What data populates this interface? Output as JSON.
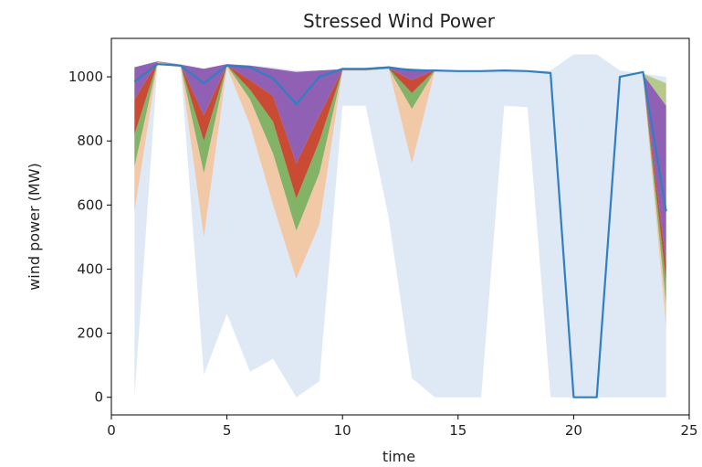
{
  "chart_data": {
    "type": "area",
    "title": "Stressed Wind Power",
    "xlabel": "time",
    "ylabel": "wind power (MW)",
    "xlim": [
      0,
      25
    ],
    "ylim": [
      -55,
      1120
    ],
    "xticks": [
      0,
      5,
      10,
      15,
      20,
      25
    ],
    "yticks": [
      0,
      200,
      400,
      600,
      800,
      1000
    ],
    "grid": false,
    "x": [
      1,
      2,
      3,
      4,
      5,
      6,
      7,
      8,
      9,
      10,
      11,
      12,
      13,
      14,
      15,
      16,
      17,
      18,
      19,
      20,
      21,
      22,
      23,
      24
    ],
    "range_band": {
      "color": "#dfe9f5",
      "lower": [
        0,
        1040,
        1030,
        70,
        260,
        80,
        120,
        0,
        50,
        910,
        910,
        560,
        60,
        0,
        0,
        0,
        910,
        905,
        0,
        0,
        0,
        0,
        0,
        0
      ],
      "upper": [
        1030,
        1050,
        1040,
        1025,
        1040,
        1035,
        1030,
        1020,
        1020,
        1025,
        1025,
        1030,
        1025,
        1020,
        1020,
        1020,
        1020,
        1020,
        1020,
        1070,
        1070,
        1020,
        1010,
        1000
      ]
    },
    "bands": [
      {
        "color": "#f2c9a6",
        "lower": [
          580,
          1040,
          1030,
          500,
          1030,
          850,
          600,
          370,
          540,
          1020,
          1020,
          1025,
          730,
          1020
        ],
        "upper": [
          720,
          1045,
          1035,
          700,
          1035,
          930,
          760,
          520,
          700,
          1020,
          1020,
          1025,
          900,
          1020
        ]
      },
      {
        "color": "#82b366",
        "lower": [
          720,
          1045,
          1035,
          700,
          1035,
          930,
          760,
          520,
          700,
          1020,
          1020,
          1025,
          900,
          1020
        ],
        "upper": [
          820,
          1046,
          1036,
          800,
          1036,
          960,
          860,
          620,
          800,
          1021,
          1021,
          1026,
          950,
          1021
        ]
      },
      {
        "color": "#c94b33",
        "lower": [
          820,
          1046,
          1036,
          800,
          1036,
          960,
          860,
          620,
          800,
          1021,
          1021,
          1026,
          950,
          1021
        ],
        "upper": [
          930,
          1047,
          1037,
          880,
          1037,
          990,
          940,
          730,
          880,
          1022,
          1022,
          1027,
          990,
          1022
        ]
      },
      {
        "color": "#9060b5",
        "lower": [
          930,
          1047,
          1037,
          880,
          1037,
          990,
          940,
          730,
          880,
          1022,
          1022,
          1027,
          990,
          1022
        ],
        "upper": [
          1030,
          1048,
          1038,
          1025,
          1040,
          1035,
          1025,
          1015,
          1020,
          1024,
          1025,
          1030,
          1025,
          1022
        ]
      }
    ],
    "bands_tail": {
      "x": [
        23,
        24
      ],
      "layers": [
        {
          "color": "#f2c9a6",
          "lower": [
            1000,
            220
          ],
          "upper": [
            1002,
            290
          ]
        },
        {
          "color": "#82b366",
          "lower": [
            1002,
            290
          ],
          "upper": [
            1004,
            360
          ]
        },
        {
          "color": "#c94b33",
          "lower": [
            1004,
            360
          ],
          "upper": [
            1006,
            420
          ]
        },
        {
          "color": "#9060b5",
          "lower": [
            1006,
            420
          ],
          "upper": [
            1008,
            910
          ]
        },
        {
          "color": "#b5c98a",
          "lower": [
            1008,
            910
          ],
          "upper": [
            1010,
            980
          ]
        }
      ]
    },
    "line": {
      "color": "#2f7fc1",
      "values": [
        985,
        1040,
        1035,
        980,
        1035,
        1030,
        995,
        915,
        1000,
        1025,
        1025,
        1030,
        1020,
        1020,
        1018,
        1018,
        1020,
        1018,
        1012,
        0,
        0,
        1000,
        1015,
        580
      ]
    }
  }
}
